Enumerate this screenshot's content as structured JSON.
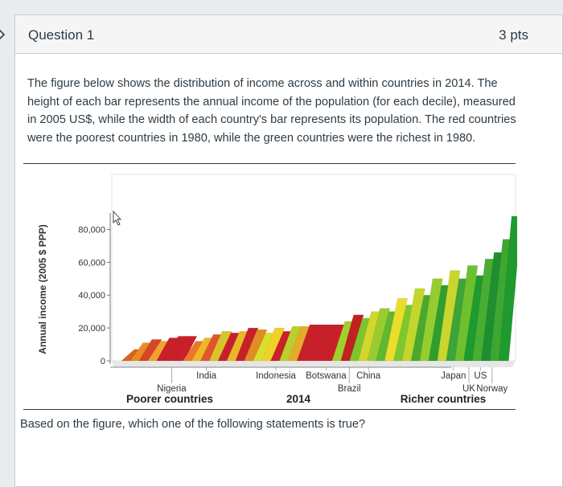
{
  "question": {
    "title": "Question 1",
    "points": "3 pts",
    "text": "The figure below shows the distribution of income across and within countries in 2014. The height of each bar represents the annual income of the population (for each decile), measured in 2005 US$, while the width of each country's bar represents its population. The red countries were the poorest countries in 1980, while the green countries were the richest in 1980.",
    "prompt": "Based on the figure, which one of the following statements is true?"
  },
  "icons": {
    "collapse": "chevron-right-icon",
    "cursor": "mouse-pointer-icon"
  },
  "colors": {
    "poorer": "#c8202a",
    "richer": "#1f9a2e",
    "middle": "#e6c21a"
  },
  "chart_data": {
    "type": "bar",
    "title": "",
    "ylabel": "Annual income (2005 $ PPP)",
    "xlabel": "2014",
    "ylim": [
      0,
      90000
    ],
    "yticks": [
      {
        "value": 0,
        "label": "0"
      },
      {
        "value": 20000,
        "label": "20,000"
      },
      {
        "value": 40000,
        "label": "40,000"
      },
      {
        "value": 60000,
        "label": "60,000"
      },
      {
        "value": 80000,
        "label": "80,000"
      }
    ],
    "country_labels": [
      {
        "name": "India",
        "row": "top",
        "pos": 0.22
      },
      {
        "name": "Nigeria",
        "row": "bottom",
        "pos": 0.13
      },
      {
        "name": "Indonesia",
        "row": "top",
        "pos": 0.4
      },
      {
        "name": "Botswana",
        "row": "top",
        "pos": 0.53
      },
      {
        "name": "China",
        "row": "top",
        "pos": 0.64
      },
      {
        "name": "Brazil",
        "row": "bottom",
        "pos": 0.59
      },
      {
        "name": "Japan",
        "row": "top",
        "pos": 0.86
      },
      {
        "name": "US",
        "row": "top",
        "pos": 0.93
      },
      {
        "name": "UK",
        "row": "bottom",
        "pos": 0.9
      },
      {
        "name": "Norway",
        "row": "bottom",
        "pos": 0.96
      }
    ],
    "segments": [
      {
        "color": "#d9611f",
        "income": 7000
      },
      {
        "color": "#e98a22",
        "income": 11000
      },
      {
        "color": "#d6452a",
        "income": 13000
      },
      {
        "color": "#f2a12c",
        "income": 12000
      },
      {
        "color": "#c8202a",
        "income": 14000
      },
      {
        "color": "#c8202a",
        "income": 15000
      },
      {
        "color": "#c8202a",
        "income": 15000
      },
      {
        "color": "#e9792a",
        "income": 12000
      },
      {
        "color": "#f0b62a",
        "income": 14000
      },
      {
        "color": "#e2542b",
        "income": 16000
      },
      {
        "color": "#d5c52a",
        "income": 18000
      },
      {
        "color": "#c8202a",
        "income": 17000
      },
      {
        "color": "#e8b82a",
        "income": 18000
      },
      {
        "color": "#c8202a",
        "income": 20000
      },
      {
        "color": "#e08d28",
        "income": 19000
      },
      {
        "color": "#d9e02a",
        "income": 17000
      },
      {
        "color": "#f0d12b",
        "income": 20000
      },
      {
        "color": "#c9202a",
        "income": 18000
      },
      {
        "color": "#b8cf2e",
        "income": 21000
      },
      {
        "color": "#e2ac2a",
        "income": 21000
      },
      {
        "color": "#c8202a",
        "income": 22000
      },
      {
        "color": "#c8202a",
        "income": 22000
      },
      {
        "color": "#c8202a",
        "income": 22000
      },
      {
        "color": "#c8202a",
        "income": 22000
      },
      {
        "color": "#9fd12e",
        "income": 24000
      },
      {
        "color": "#c2221f",
        "income": 28000
      },
      {
        "color": "#7cc52e",
        "income": 26000
      },
      {
        "color": "#d3d72b",
        "income": 30000
      },
      {
        "color": "#9acc2f",
        "income": 32000
      },
      {
        "color": "#5fb82f",
        "income": 30000
      },
      {
        "color": "#eadd2b",
        "income": 38000
      },
      {
        "color": "#7dc72f",
        "income": 34000
      },
      {
        "color": "#c2d62d",
        "income": 44000
      },
      {
        "color": "#4aa82f",
        "income": 40000
      },
      {
        "color": "#95cd2f",
        "income": 50000
      },
      {
        "color": "#2f9e2f",
        "income": 46000
      },
      {
        "color": "#c8d62f",
        "income": 55000
      },
      {
        "color": "#3da33a",
        "income": 50000
      },
      {
        "color": "#6fc02f",
        "income": 58000
      },
      {
        "color": "#1f9a2e",
        "income": 52000
      },
      {
        "color": "#48ae33",
        "income": 62000
      },
      {
        "color": "#1e8f30",
        "income": 66000
      },
      {
        "color": "#3fa632",
        "income": 74000
      },
      {
        "color": "#1f9a2e",
        "income": 88000
      }
    ],
    "footer": {
      "poorer": "Poorer countries",
      "year": "2014",
      "richer": "Richer countries"
    }
  }
}
